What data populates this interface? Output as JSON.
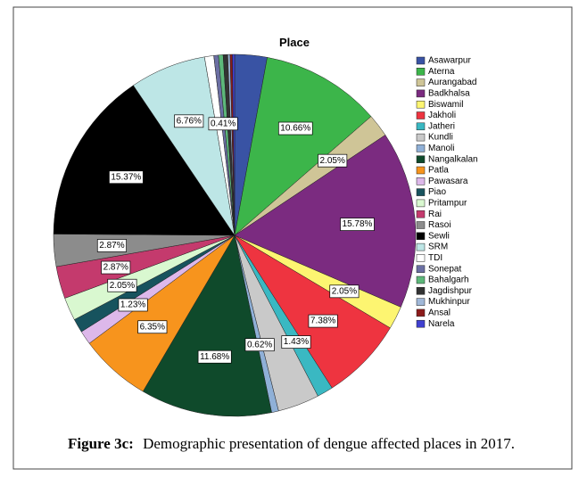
{
  "chart_data": {
    "type": "pie",
    "title": "Place",
    "categories": [
      "Asawarpur",
      "Aterna",
      "Aurangabad",
      "Badkhalsa",
      "Biswamil",
      "Jakholi",
      "Jatheri",
      "Kundli",
      "Manoli",
      "Nangalkalan",
      "Patla",
      "Pawasara",
      "Piao",
      "Pritampur",
      "Rai",
      "Rasoi",
      "Sewli",
      "SRM",
      "TDI",
      "Sonepat",
      "Bahalgarh",
      "Jagdishpur",
      "Mukhinpur",
      "Ansal",
      "Narela"
    ],
    "values": [
      2.87,
      10.66,
      2.05,
      15.78,
      2.05,
      7.38,
      1.43,
      3.69,
      0.62,
      11.68,
      6.35,
      1.23,
      1.23,
      2.05,
      2.87,
      2.87,
      15.37,
      6.76,
      0.82,
      0.41,
      0.41,
      0.41,
      0.2,
      0.2,
      0.2
    ],
    "value_labels": [
      null,
      "10.66%",
      "2.05%",
      "15.78%",
      "2.05%",
      "7.38%",
      "1.43%",
      null,
      "0.62%",
      "11.68%",
      "6.35%",
      "1.23%",
      null,
      "2.05%",
      "2.87%",
      "2.87%",
      "15.37%",
      "6.76%",
      null,
      "0.41%",
      null,
      null,
      null,
      null,
      null
    ],
    "colors": [
      "#3953a4",
      "#3cb54a",
      "#cfc597",
      "#7b2b80",
      "#fdf571",
      "#ee3440",
      "#3ab8c2",
      "#c9c9c9",
      "#8fb0d7",
      "#0f4a2b",
      "#f7941d",
      "#ddb8ea",
      "#17535e",
      "#d9f8d0",
      "#c43a6d",
      "#8c8c8c",
      "#000000",
      "#bde6e6",
      "#ffffff",
      "#6b6fa3",
      "#5db87a",
      "#333333",
      "#a0b8d8",
      "#8b1a1a",
      "#4040d0"
    ]
  },
  "caption": {
    "label": "Figure 3c:",
    "text": "Demographic presentation of dengue affected places in 2017."
  }
}
